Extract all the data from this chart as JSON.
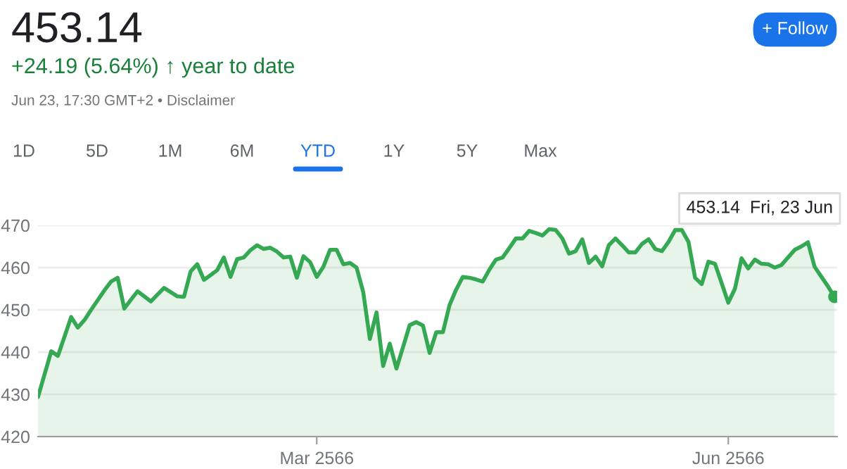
{
  "chart_data": {
    "type": "area",
    "title": "453.14",
    "subtitle": "+24.19 (5.64%) ↑ year to date",
    "annotations": [
      "Jun 23, 17:30 GMT+2 • Disclaimer",
      "+ Follow",
      "1D",
      "5D",
      "1M",
      "6M",
      "YTD",
      "1Y",
      "5Y",
      "Max",
      "453.14  Fri, 23 Jun"
    ],
    "categories": [
      null,
      null,
      null,
      null,
      null,
      null,
      null,
      null,
      null,
      null,
      null,
      null,
      null,
      null,
      null,
      null,
      null,
      null,
      null,
      null,
      null,
      null,
      null,
      null,
      null,
      null,
      null,
      null,
      null,
      null,
      null,
      null,
      null,
      null,
      null,
      null,
      null,
      null,
      null,
      null,
      null,
      null,
      "Mar 2566",
      null,
      null,
      null,
      null,
      null,
      null,
      null,
      null,
      null,
      null,
      null,
      null,
      null,
      null,
      null,
      null,
      null,
      null,
      null,
      null,
      null,
      null,
      null,
      null,
      null,
      null,
      null,
      null,
      null,
      null,
      null,
      null,
      null,
      null,
      null,
      null,
      null,
      null,
      null,
      null,
      null,
      null,
      null,
      null,
      null,
      null,
      null,
      null,
      null,
      null,
      null,
      null,
      null,
      null,
      null,
      null,
      null,
      null,
      null,
      null,
      null,
      "Jun 2566",
      null,
      null,
      null,
      null,
      null,
      null,
      null,
      null,
      null,
      null,
      null,
      null,
      null,
      null,
      null,
      null
    ],
    "series": [
      {
        "color": "#34a853",
        "values": [
          429.4,
          434.8,
          440.2,
          439.1,
          443.7,
          448.3,
          445.8,
          447.6,
          450.0,
          452.3,
          454.6,
          456.7,
          457.6,
          450.3,
          452.4,
          454.4,
          453.2,
          452.0,
          453.6,
          455.2,
          454.2,
          453.2,
          453.1,
          459.1,
          460.8,
          457.1,
          458.2,
          459.4,
          462.4,
          457.8,
          462.0,
          462.4,
          464.1,
          465.3,
          464.4,
          464.7,
          463.8,
          462.4,
          462.6,
          457.6,
          462.7,
          461.3,
          457.8,
          460.2,
          464.2,
          464.2,
          460.8,
          461.1,
          460.0,
          454.2,
          443.1,
          449.4,
          436.7,
          442.0,
          436.1,
          441.2,
          446.4,
          447.1,
          446.3,
          439.8,
          444.7,
          444.7,
          451.1,
          454.8,
          457.8,
          457.6,
          457.2,
          456.7,
          459.5,
          461.9,
          462.4,
          464.6,
          466.9,
          466.9,
          468.7,
          468.2,
          467.6,
          469.1,
          468.9,
          466.9,
          463.3,
          463.9,
          466.7,
          461.1,
          462.6,
          460.3,
          465.3,
          466.9,
          465.3,
          463.6,
          463.6,
          465.6,
          466.7,
          464.4,
          463.9,
          466.1,
          468.9,
          468.9,
          466.1,
          457.6,
          456.1,
          461.4,
          460.9,
          456.3,
          451.7,
          455.0,
          462.2,
          459.8,
          461.9,
          460.9,
          460.8,
          460.0,
          460.6,
          462.4,
          464.2,
          465.0,
          466.0,
          460.2,
          457.9,
          455.6,
          453.1
        ]
      },
      {
        "type": "scatter",
        "color": "#34a853",
        "values": [
          null,
          null,
          null,
          null,
          null,
          null,
          null,
          null,
          null,
          null,
          null,
          null,
          null,
          null,
          null,
          null,
          null,
          null,
          null,
          null,
          null,
          null,
          null,
          null,
          null,
          null,
          null,
          null,
          null,
          null,
          null,
          null,
          null,
          null,
          null,
          null,
          null,
          null,
          null,
          null,
          null,
          null,
          null,
          null,
          null,
          null,
          null,
          null,
          null,
          null,
          null,
          null,
          null,
          null,
          null,
          null,
          null,
          null,
          null,
          null,
          null,
          null,
          null,
          null,
          null,
          null,
          null,
          null,
          null,
          null,
          null,
          null,
          null,
          null,
          null,
          null,
          null,
          null,
          null,
          null,
          null,
          null,
          null,
          null,
          null,
          null,
          null,
          null,
          null,
          null,
          null,
          null,
          null,
          null,
          null,
          null,
          null,
          null,
          null,
          null,
          null,
          null,
          null,
          null,
          null,
          null,
          null,
          null,
          null,
          null,
          null,
          null,
          null,
          null,
          null,
          null,
          null,
          null,
          null,
          null,
          453.1
        ]
      }
    ],
    "ylim": [
      420,
      470
    ],
    "yticks": [
      420,
      430,
      440,
      450,
      460,
      470
    ],
    "grid": "y"
  }
}
